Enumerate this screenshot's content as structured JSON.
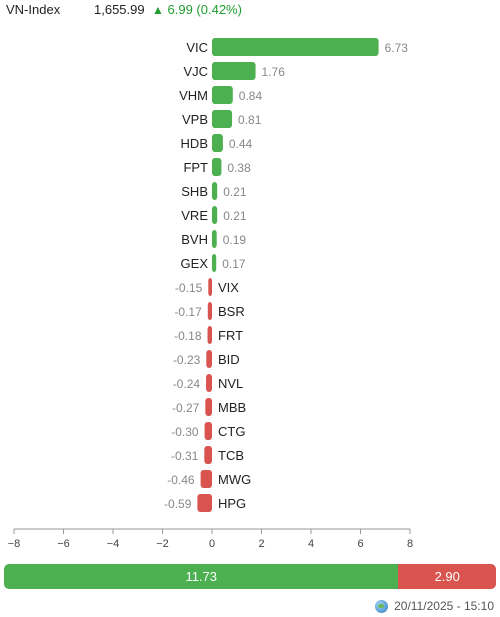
{
  "header": {
    "index_name": "VN-Index",
    "index_value": "1,655.99",
    "change_arrow": "▲",
    "change": "6.99 (0.42%)"
  },
  "chart_data": {
    "type": "bar",
    "orientation": "horizontal",
    "title": "",
    "xlabel": "",
    "ylabel": "",
    "xlim": [
      -8,
      8
    ],
    "xticks": [
      "−8",
      "−6",
      "−4",
      "−2",
      "0",
      "2",
      "4",
      "6",
      "8"
    ],
    "categories": [
      "VIC",
      "VJC",
      "VHM",
      "VPB",
      "HDB",
      "FPT",
      "SHB",
      "VRE",
      "BVH",
      "GEX",
      "VIX",
      "BSR",
      "FRT",
      "BID",
      "NVL",
      "MBB",
      "CTG",
      "TCB",
      "MWG",
      "HPG"
    ],
    "values": [
      6.73,
      1.76,
      0.84,
      0.81,
      0.44,
      0.38,
      0.21,
      0.21,
      0.19,
      0.17,
      -0.15,
      -0.17,
      -0.18,
      -0.23,
      -0.24,
      -0.27,
      -0.3,
      -0.31,
      -0.46,
      -0.59
    ],
    "value_labels": [
      "6.73",
      "1.76",
      "0.84",
      "0.81",
      "0.44",
      "0.38",
      "0.21",
      "0.21",
      "0.19",
      "0.17",
      "-0.15",
      "-0.17",
      "-0.18",
      "-0.23",
      "-0.24",
      "-0.27",
      "-0.30",
      "-0.31",
      "-0.46",
      "-0.59"
    ],
    "positive_color": "#4caf50",
    "negative_color": "#d9534f",
    "grid": false,
    "legend": "none"
  },
  "summary_bar": {
    "positive_total": 11.73,
    "positive_label": "11.73",
    "negative_total": 2.9,
    "negative_label": "2.90"
  },
  "timestamp": "20/11/2025 - 15:10"
}
